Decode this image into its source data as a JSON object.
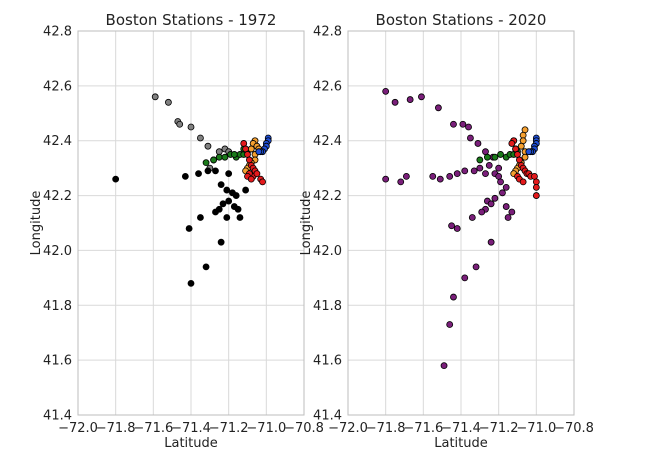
{
  "colors": {
    "background": "#ffffff",
    "grid": "#d9d9d9",
    "axes_edge": "#bdbdbd",
    "marker_edge": "#000000",
    "gray": "#808080",
    "black": "#000000",
    "green": "#1a7a1a",
    "orange": "#f5a030",
    "red": "#e41a1c",
    "blue": "#1f4fd6",
    "purple": "#7a1f7a"
  },
  "chart_data": [
    {
      "type": "scatter",
      "title": "Boston Stations - 1972",
      "xlabel": "Latitude",
      "ylabel": "Longitude",
      "xlim": [
        -72.0,
        -70.8
      ],
      "ylim": [
        41.4,
        42.8
      ],
      "xticks": [
        -72.0,
        -71.8,
        -71.6,
        -71.4,
        -71.2,
        -71.0,
        -70.8
      ],
      "yticks": [
        41.4,
        41.6,
        41.8,
        42.0,
        42.2,
        42.4,
        42.6,
        42.8
      ],
      "xtick_labels": [
        "−72.0",
        "−71.8",
        "−71.6",
        "−71.4",
        "−71.2",
        "−71.0",
        "−70.8"
      ],
      "ytick_labels": [
        "41.4",
        "41.6",
        "41.8",
        "42.0",
        "42.2",
        "42.4",
        "42.6",
        "42.8"
      ],
      "grid": true,
      "series": [
        {
          "color": "gray",
          "points": [
            [
              -71.59,
              42.56
            ],
            [
              -71.52,
              42.54
            ],
            [
              -71.47,
              42.47
            ],
            [
              -71.46,
              42.46
            ],
            [
              -71.4,
              42.45
            ],
            [
              -71.35,
              42.41
            ],
            [
              -71.31,
              42.38
            ],
            [
              -71.25,
              42.36
            ],
            [
              -71.22,
              42.37
            ],
            [
              -71.2,
              42.36
            ],
            [
              -71.28,
              42.33
            ],
            [
              -71.3,
              42.3
            ]
          ]
        },
        {
          "color": "black",
          "points": [
            [
              -71.8,
              42.26
            ],
            [
              -71.43,
              42.27
            ],
            [
              -71.36,
              42.28
            ],
            [
              -71.31,
              42.29
            ],
            [
              -71.27,
              42.29
            ],
            [
              -71.2,
              42.28
            ],
            [
              -71.24,
              42.24
            ],
            [
              -71.21,
              42.22
            ],
            [
              -71.18,
              42.21
            ],
            [
              -71.16,
              42.2
            ],
            [
              -71.11,
              42.22
            ],
            [
              -71.2,
              42.18
            ],
            [
              -71.23,
              42.17
            ],
            [
              -71.27,
              42.14
            ],
            [
              -71.35,
              42.12
            ],
            [
              -71.21,
              42.12
            ],
            [
              -71.14,
              42.12
            ],
            [
              -71.17,
              42.16
            ],
            [
              -71.15,
              42.15
            ],
            [
              -71.25,
              42.15
            ],
            [
              -71.41,
              42.08
            ],
            [
              -71.24,
              42.03
            ],
            [
              -71.32,
              41.94
            ],
            [
              -71.4,
              41.88
            ]
          ]
        },
        {
          "color": "green",
          "points": [
            [
              -71.32,
              42.32
            ],
            [
              -71.28,
              42.33
            ],
            [
              -71.25,
              42.34
            ],
            [
              -71.22,
              42.34
            ],
            [
              -71.19,
              42.35
            ],
            [
              -71.16,
              42.34
            ],
            [
              -71.14,
              42.35
            ],
            [
              -71.12,
              42.35
            ],
            [
              -71.1,
              42.36
            ],
            [
              -71.12,
              42.37
            ],
            [
              -71.17,
              42.35
            ]
          ]
        },
        {
          "color": "orange",
          "points": [
            [
              -71.06,
              42.4
            ],
            [
              -71.07,
              42.39
            ],
            [
              -71.08,
              42.37
            ],
            [
              -71.06,
              42.35
            ],
            [
              -71.06,
              42.33
            ],
            [
              -71.08,
              42.32
            ],
            [
              -71.09,
              42.31
            ],
            [
              -71.1,
              42.3
            ],
            [
              -71.11,
              42.29
            ],
            [
              -71.05,
              42.38
            ],
            [
              -71.04,
              42.37
            ]
          ]
        },
        {
          "color": "red",
          "points": [
            [
              -71.12,
              42.39
            ],
            [
              -71.11,
              42.37
            ],
            [
              -71.1,
              42.35
            ],
            [
              -71.09,
              42.33
            ],
            [
              -71.08,
              42.31
            ],
            [
              -71.07,
              42.3
            ],
            [
              -71.06,
              42.29
            ],
            [
              -71.07,
              42.27
            ],
            [
              -71.05,
              42.28
            ],
            [
              -71.03,
              42.26
            ],
            [
              -71.02,
              42.25
            ],
            [
              -71.09,
              42.28
            ],
            [
              -71.1,
              42.27
            ],
            [
              -71.08,
              42.26
            ]
          ]
        },
        {
          "color": "blue",
          "points": [
            [
              -70.99,
              42.41
            ],
            [
              -70.99,
              42.4
            ],
            [
              -71.0,
              42.39
            ],
            [
              -71.0,
              42.38
            ],
            [
              -71.01,
              42.37
            ],
            [
              -71.02,
              42.36
            ],
            [
              -71.03,
              42.36
            ],
            [
              -71.04,
              42.36
            ]
          ]
        }
      ]
    },
    {
      "type": "scatter",
      "title": "Boston Stations - 2020",
      "xlabel": "Latitude",
      "ylabel": "Longitude",
      "xlim": [
        -72.0,
        -70.8
      ],
      "ylim": [
        41.4,
        42.8
      ],
      "xticks": [
        -72.0,
        -71.8,
        -71.6,
        -71.4,
        -71.2,
        -71.0,
        -70.8
      ],
      "yticks": [
        41.4,
        41.6,
        41.8,
        42.0,
        42.2,
        42.4,
        42.6,
        42.8
      ],
      "xtick_labels": [
        "−72.0",
        "−71.8",
        "−71.6",
        "−71.4",
        "−71.2",
        "−71.0",
        "−70.8"
      ],
      "ytick_labels": [
        "41.4",
        "41.6",
        "41.8",
        "42.0",
        "42.2",
        "42.4",
        "42.6",
        "42.8"
      ],
      "grid": true,
      "series": [
        {
          "color": "purple",
          "points": [
            [
              -71.8,
              42.58
            ],
            [
              -71.75,
              42.54
            ],
            [
              -71.67,
              42.55
            ],
            [
              -71.61,
              42.56
            ],
            [
              -71.52,
              42.52
            ],
            [
              -71.44,
              42.46
            ],
            [
              -71.39,
              42.46
            ],
            [
              -71.36,
              42.45
            ],
            [
              -71.8,
              42.26
            ],
            [
              -71.72,
              42.25
            ],
            [
              -71.69,
              42.27
            ],
            [
              -71.55,
              42.27
            ],
            [
              -71.51,
              42.26
            ],
            [
              -71.46,
              42.27
            ],
            [
              -71.42,
              42.28
            ],
            [
              -71.38,
              42.29
            ],
            [
              -71.33,
              42.29
            ],
            [
              -71.3,
              42.3
            ],
            [
              -71.27,
              42.28
            ],
            [
              -71.25,
              42.31
            ],
            [
              -71.22,
              42.28
            ],
            [
              -71.2,
              42.27
            ],
            [
              -71.19,
              42.25
            ],
            [
              -71.16,
              42.23
            ],
            [
              -71.18,
              42.21
            ],
            [
              -71.22,
              42.19
            ],
            [
              -71.26,
              42.18
            ],
            [
              -71.24,
              42.17
            ],
            [
              -71.27,
              42.15
            ],
            [
              -71.29,
              42.14
            ],
            [
              -71.16,
              42.16
            ],
            [
              -71.13,
              42.14
            ],
            [
              -71.15,
              42.12
            ],
            [
              -71.34,
              42.12
            ],
            [
              -71.45,
              42.09
            ],
            [
              -71.42,
              42.08
            ],
            [
              -71.24,
              42.03
            ],
            [
              -71.32,
              41.94
            ],
            [
              -71.38,
              41.9
            ],
            [
              -71.44,
              41.83
            ],
            [
              -71.46,
              41.73
            ],
            [
              -71.49,
              41.58
            ],
            [
              -71.35,
              42.41
            ],
            [
              -71.31,
              42.39
            ],
            [
              -71.27,
              42.36
            ],
            [
              -71.23,
              42.34
            ],
            [
              -71.2,
              42.3
            ]
          ]
        },
        {
          "color": "green",
          "points": [
            [
              -71.3,
              42.33
            ],
            [
              -71.26,
              42.34
            ],
            [
              -71.22,
              42.34
            ],
            [
              -71.19,
              42.35
            ],
            [
              -71.16,
              42.34
            ],
            [
              -71.14,
              42.35
            ],
            [
              -71.12,
              42.35
            ],
            [
              -71.1,
              42.36
            ],
            [
              -71.12,
              42.4
            ],
            [
              -71.11,
              42.37
            ]
          ]
        },
        {
          "color": "orange",
          "points": [
            [
              -71.06,
              42.44
            ],
            [
              -71.07,
              42.42
            ],
            [
              -71.07,
              42.4
            ],
            [
              -71.08,
              42.38
            ],
            [
              -71.06,
              42.36
            ],
            [
              -71.06,
              42.34
            ],
            [
              -71.08,
              42.32
            ],
            [
              -71.09,
              42.31
            ],
            [
              -71.1,
              42.3
            ],
            [
              -71.11,
              42.29
            ],
            [
              -71.12,
              42.28
            ]
          ]
        },
        {
          "color": "red",
          "points": [
            [
              -71.12,
              42.4
            ],
            [
              -71.13,
              42.39
            ],
            [
              -71.11,
              42.37
            ],
            [
              -71.1,
              42.35
            ],
            [
              -71.09,
              42.33
            ],
            [
              -71.08,
              42.31
            ],
            [
              -71.07,
              42.3
            ],
            [
              -71.06,
              42.29
            ],
            [
              -71.05,
              42.28
            ],
            [
              -71.04,
              42.28
            ],
            [
              -71.03,
              42.27
            ],
            [
              -71.01,
              42.27
            ],
            [
              -71.0,
              42.25
            ],
            [
              -71.0,
              42.23
            ],
            [
              -71.0,
              42.2
            ],
            [
              -71.1,
              42.27
            ],
            [
              -71.09,
              42.26
            ],
            [
              -71.07,
              42.25
            ]
          ]
        },
        {
          "color": "blue",
          "points": [
            [
              -71.0,
              42.41
            ],
            [
              -71.0,
              42.4
            ],
            [
              -71.0,
              42.39
            ],
            [
              -71.01,
              42.38
            ],
            [
              -71.01,
              42.37
            ],
            [
              -71.02,
              42.36
            ],
            [
              -71.03,
              42.36
            ],
            [
              -71.04,
              42.36
            ]
          ]
        }
      ]
    }
  ]
}
